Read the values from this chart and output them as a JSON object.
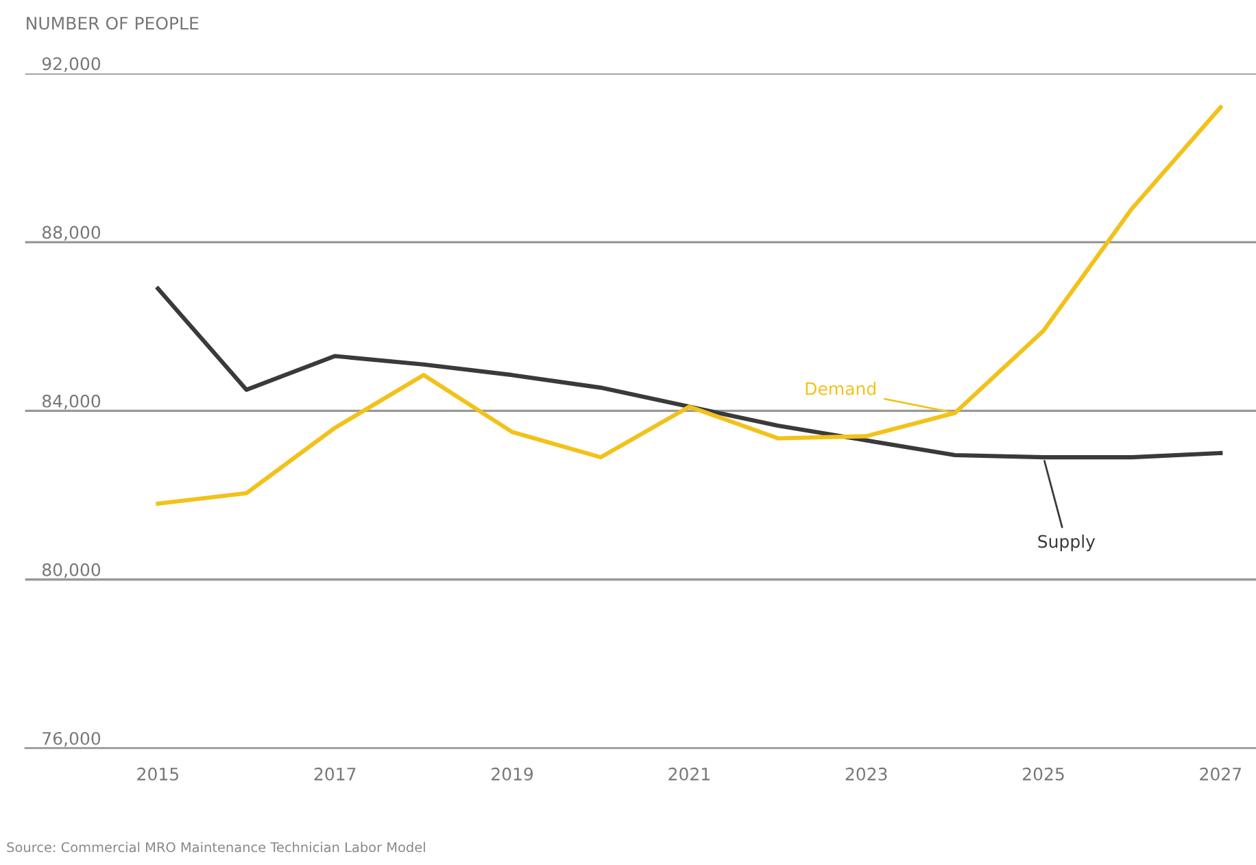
{
  "chart_data": {
    "type": "line",
    "ylabel": "NUMBER OF PEOPLE",
    "x": [
      2015,
      2016,
      2017,
      2018,
      2019,
      2020,
      2021,
      2022,
      2023,
      2024,
      2025,
      2026,
      2027
    ],
    "series": [
      {
        "name": "Supply",
        "color": "#3a3a3a",
        "values": [
          86900,
          84500,
          85300,
          85100,
          84850,
          84550,
          84100,
          83650,
          83300,
          82950,
          82900,
          82900,
          83000
        ]
      },
      {
        "name": "Demand",
        "color": "#f2c21b",
        "values": [
          81800,
          82050,
          83600,
          84850,
          83500,
          82900,
          84100,
          83350,
          83400,
          83950,
          85900,
          88800,
          91200
        ]
      }
    ],
    "xlim": [
      2013.5,
      2027.4
    ],
    "ylim": [
      76000,
      92000
    ],
    "xticks": [
      2015,
      2017,
      2019,
      2021,
      2023,
      2025,
      2027
    ],
    "yticks": [
      {
        "value": 76000,
        "label": "76,000"
      },
      {
        "value": 80000,
        "label": "80,000"
      },
      {
        "value": 84000,
        "label": "84,000"
      },
      {
        "value": 88000,
        "label": "88,000"
      },
      {
        "value": 92000,
        "label": "92,000"
      }
    ],
    "grid": "y",
    "legend": false,
    "line_style": "solid",
    "annotations": [
      "Source: Commercial MRO Maintenance Technician Labor Model"
    ]
  }
}
